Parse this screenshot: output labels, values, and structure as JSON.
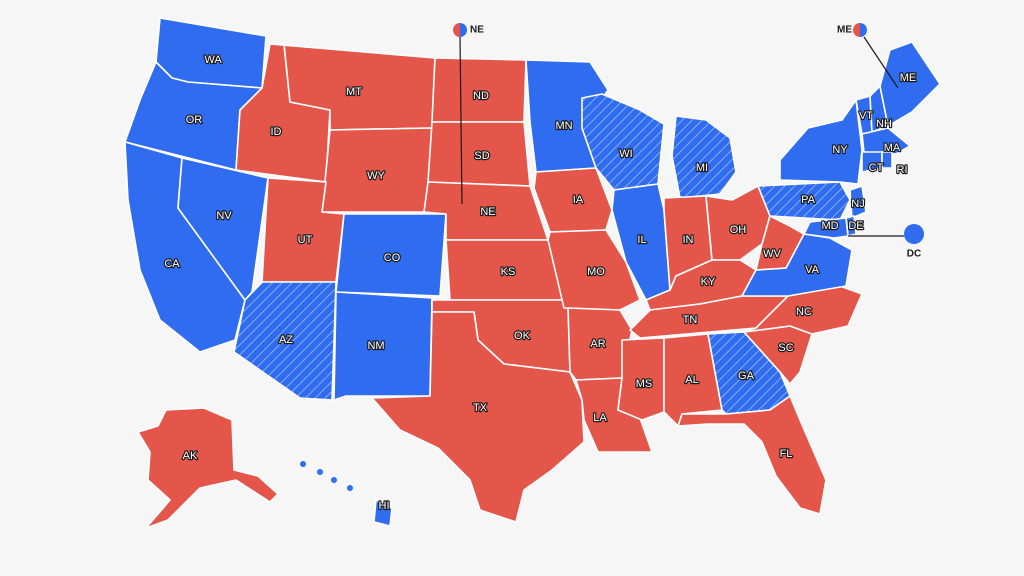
{
  "colors": {
    "red": "#e5564a",
    "blue": "#2f6cf0",
    "border": "#ffffff",
    "background": "#f6f6f6"
  },
  "states": [
    {
      "abbr": "WA",
      "party": "blue",
      "hatched": false
    },
    {
      "abbr": "OR",
      "party": "blue",
      "hatched": false
    },
    {
      "abbr": "CA",
      "party": "blue",
      "hatched": false
    },
    {
      "abbr": "NV",
      "party": "blue",
      "hatched": false
    },
    {
      "abbr": "ID",
      "party": "red",
      "hatched": false
    },
    {
      "abbr": "MT",
      "party": "red",
      "hatched": false
    },
    {
      "abbr": "WY",
      "party": "red",
      "hatched": false
    },
    {
      "abbr": "UT",
      "party": "red",
      "hatched": false
    },
    {
      "abbr": "AZ",
      "party": "blue",
      "hatched": true
    },
    {
      "abbr": "CO",
      "party": "blue",
      "hatched": false
    },
    {
      "abbr": "NM",
      "party": "blue",
      "hatched": false
    },
    {
      "abbr": "ND",
      "party": "red",
      "hatched": false
    },
    {
      "abbr": "SD",
      "party": "red",
      "hatched": false
    },
    {
      "abbr": "NE",
      "party": "red",
      "hatched": false
    },
    {
      "abbr": "KS",
      "party": "red",
      "hatched": false
    },
    {
      "abbr": "OK",
      "party": "red",
      "hatched": false
    },
    {
      "abbr": "TX",
      "party": "red",
      "hatched": false
    },
    {
      "abbr": "MN",
      "party": "blue",
      "hatched": false
    },
    {
      "abbr": "IA",
      "party": "red",
      "hatched": false
    },
    {
      "abbr": "MO",
      "party": "red",
      "hatched": false
    },
    {
      "abbr": "AR",
      "party": "red",
      "hatched": false
    },
    {
      "abbr": "LA",
      "party": "red",
      "hatched": false
    },
    {
      "abbr": "WI",
      "party": "blue",
      "hatched": true
    },
    {
      "abbr": "IL",
      "party": "blue",
      "hatched": false
    },
    {
      "abbr": "MI",
      "party": "blue",
      "hatched": true
    },
    {
      "abbr": "IN",
      "party": "red",
      "hatched": false
    },
    {
      "abbr": "OH",
      "party": "red",
      "hatched": false
    },
    {
      "abbr": "KY",
      "party": "red",
      "hatched": false
    },
    {
      "abbr": "TN",
      "party": "red",
      "hatched": false
    },
    {
      "abbr": "MS",
      "party": "red",
      "hatched": false
    },
    {
      "abbr": "AL",
      "party": "red",
      "hatched": false
    },
    {
      "abbr": "GA",
      "party": "blue",
      "hatched": true
    },
    {
      "abbr": "FL",
      "party": "red",
      "hatched": false
    },
    {
      "abbr": "SC",
      "party": "red",
      "hatched": false
    },
    {
      "abbr": "NC",
      "party": "red",
      "hatched": false
    },
    {
      "abbr": "VA",
      "party": "blue",
      "hatched": false
    },
    {
      "abbr": "WV",
      "party": "red",
      "hatched": false
    },
    {
      "abbr": "PA",
      "party": "blue",
      "hatched": true
    },
    {
      "abbr": "NY",
      "party": "blue",
      "hatched": false
    },
    {
      "abbr": "VT",
      "party": "blue",
      "hatched": false
    },
    {
      "abbr": "NH",
      "party": "blue",
      "hatched": false
    },
    {
      "abbr": "ME",
      "party": "blue",
      "hatched": false
    },
    {
      "abbr": "MA",
      "party": "blue",
      "hatched": false
    },
    {
      "abbr": "CT",
      "party": "blue",
      "hatched": false
    },
    {
      "abbr": "RI",
      "party": "blue",
      "hatched": false
    },
    {
      "abbr": "NJ",
      "party": "blue",
      "hatched": false
    },
    {
      "abbr": "DE",
      "party": "blue",
      "hatched": false
    },
    {
      "abbr": "MD",
      "party": "blue",
      "hatched": false
    },
    {
      "abbr": "AK",
      "party": "red",
      "hatched": false
    },
    {
      "abbr": "HI",
      "party": "blue",
      "hatched": false
    }
  ],
  "callouts": [
    {
      "label": "NE",
      "type": "split"
    },
    {
      "label": "ME",
      "type": "split"
    },
    {
      "label": "DC",
      "type": "blue"
    }
  ]
}
